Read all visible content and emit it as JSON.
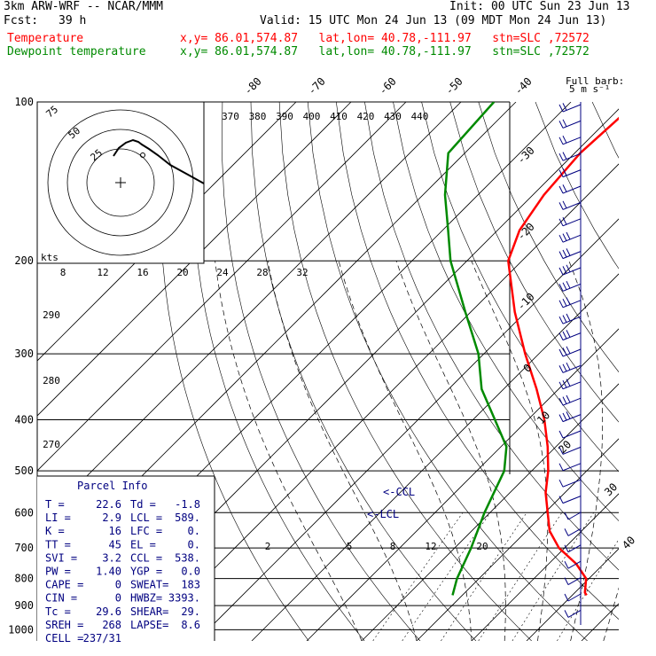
{
  "header": {
    "model": "3km ARW-WRF -- NCAR/MMM",
    "init": "Init: 00 UTC Sun 23 Jun 13",
    "fcst_label": "Fcst:",
    "fcst_value": "39 h",
    "valid": "Valid: 15 UTC Mon 24 Jun 13 (09 MDT Mon 24 Jun 13)",
    "temp_label": "Temperature",
    "temp_info": "x,y= 86.01,574.87   lat,lon= 40.78,-111.97   stn=SLC ,72572",
    "dew_label": "Dewpoint temperature",
    "dew_info": "x,y= 86.01,574.87   lat,lon= 40.78,-111.97   stn=SLC ,72572"
  },
  "colors": {
    "temperature": "#ff0000",
    "dewpoint": "#008a00",
    "info": "#000080",
    "wind": "#000080"
  },
  "chart_data": {
    "type": "line",
    "title": "",
    "ylabel": "",
    "xlabel": "",
    "pressure_ticks": [
      "100",
      "200",
      "300",
      "400",
      "500",
      "600",
      "700",
      "800",
      "900",
      "1000"
    ],
    "isotherm_labels": [
      "-80",
      "-70",
      "-60",
      "-50",
      "-40",
      "-30",
      "-20",
      "-10",
      "0",
      "10",
      "20",
      "30",
      "40"
    ],
    "theta_e_labels": [
      "370",
      "380",
      "390",
      "400",
      "410",
      "420",
      "430",
      "440"
    ],
    "theta_labels_left": [
      "290",
      "280",
      "270"
    ],
    "mixing_ratio_labels": [
      "2",
      "5",
      "8",
      "12",
      "20"
    ],
    "hodograph": {
      "units": "kts",
      "ring_labels": [
        "25",
        "50",
        "75"
      ],
      "speed_axis_labels": [
        "8",
        "12",
        "16",
        "20",
        "24",
        "28",
        "32"
      ]
    },
    "series": [
      {
        "name": "Temperature",
        "color": "#ff0000",
        "points": [
          {
            "p": 860,
            "t": 22.6
          },
          {
            "p": 850,
            "t": 21.8
          },
          {
            "p": 800,
            "t": 19.5
          },
          {
            "p": 750,
            "t": 15.0
          },
          {
            "p": 700,
            "t": 9.0
          },
          {
            "p": 650,
            "t": 4.2
          },
          {
            "p": 600,
            "t": 0.5
          },
          {
            "p": 550,
            "t": -3.5
          },
          {
            "p": 500,
            "t": -7.0
          },
          {
            "p": 450,
            "t": -11.5
          },
          {
            "p": 400,
            "t": -17.0
          },
          {
            "p": 350,
            "t": -24.0
          },
          {
            "p": 300,
            "t": -32.5
          },
          {
            "p": 250,
            "t": -42.0
          },
          {
            "p": 200,
            "t": -52.5
          },
          {
            "p": 175,
            "t": -56.0
          },
          {
            "p": 150,
            "t": -58.0
          },
          {
            "p": 125,
            "t": -59.0
          },
          {
            "p": 100,
            "t": -58.0
          }
        ]
      },
      {
        "name": "Dewpoint temperature",
        "color": "#008a00",
        "points": [
          {
            "p": 860,
            "t": -1.8
          },
          {
            "p": 800,
            "t": -4.0
          },
          {
            "p": 700,
            "t": -7.0
          },
          {
            "p": 600,
            "t": -11.0
          },
          {
            "p": 500,
            "t": -15.0
          },
          {
            "p": 450,
            "t": -19.0
          },
          {
            "p": 400,
            "t": -26.0
          },
          {
            "p": 350,
            "t": -34.0
          },
          {
            "p": 300,
            "t": -41.0
          },
          {
            "p": 250,
            "t": -51.0
          },
          {
            "p": 200,
            "t": -63.0
          },
          {
            "p": 175,
            "t": -69.0
          },
          {
            "p": 150,
            "t": -76.0
          },
          {
            "p": 125,
            "t": -83.0
          },
          {
            "p": 100,
            "t": -84.0
          }
        ]
      }
    ],
    "annotations": [
      "<-CCL",
      "<-LCL"
    ]
  },
  "parcel_info": {
    "title": "Parcel Info",
    "rows": [
      [
        "T  =",
        "22.6",
        "Td =",
        "-1.8"
      ],
      [
        "LI =",
        "2.9",
        "LCL =",
        "589."
      ],
      [
        "K  =",
        "16",
        "LFC =",
        "0."
      ],
      [
        "TT =",
        "45",
        "EL  =",
        "0."
      ],
      [
        "SVI =",
        "3.2",
        "CCL =",
        "538."
      ],
      [
        "PW =",
        "1.40",
        "YGP =",
        "0.0"
      ],
      [
        "CAPE =",
        "0",
        "SWEAT=",
        "183"
      ],
      [
        "CIN  =",
        "0",
        "HWBZ=",
        "3393."
      ],
      [
        "Tc  =",
        "29.6",
        "SHEAR=",
        "29."
      ],
      [
        "SREH =",
        "268",
        "LAPSE=",
        "8.6"
      ],
      [
        "CELL =",
        "237/31",
        "",
        ""
      ]
    ]
  },
  "wind_legend": {
    "line1": "Full barb:",
    "line2": "5 m s⁻¹"
  }
}
